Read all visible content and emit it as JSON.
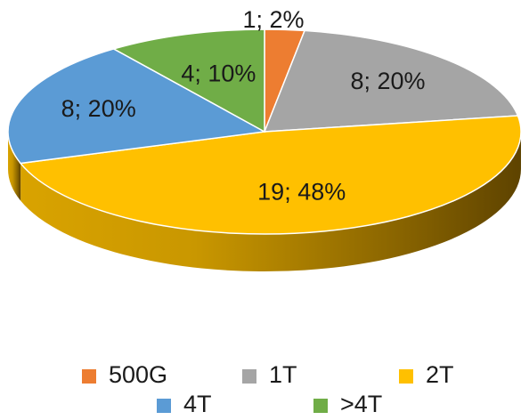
{
  "chart_data": {
    "type": "pie",
    "style": "3d",
    "categories": [
      "500G",
      "1T",
      "2T",
      "4T",
      ">4T"
    ],
    "values": [
      1,
      8,
      19,
      8,
      4
    ],
    "percents": [
      2,
      20,
      48,
      20,
      10
    ],
    "data_labels": [
      "1; 2%",
      "8; 20%",
      "19; 48%",
      "8; 20%",
      "4; 10%"
    ],
    "colors": {
      "500G": "#ED7D31",
      "1T": "#A5A5A5",
      "2T": "#FFC000",
      "4T": "#5B9BD5",
      ">4T": "#70AD47"
    },
    "legend_position": "bottom"
  }
}
